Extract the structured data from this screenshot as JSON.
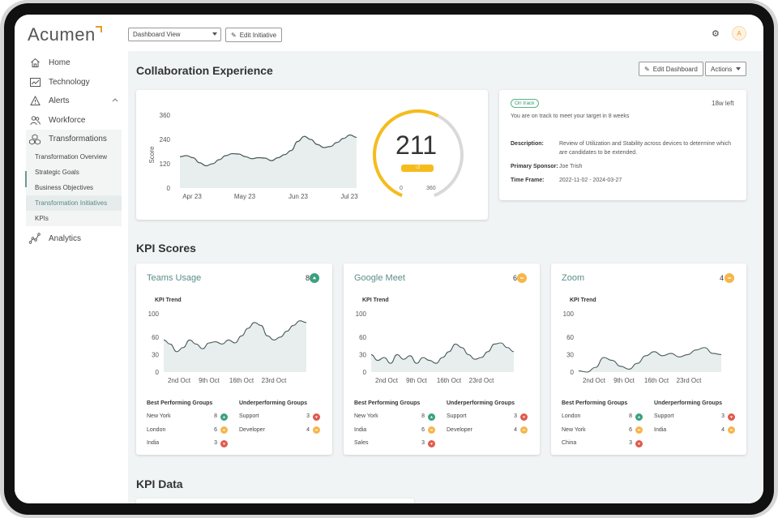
{
  "app": {
    "logo": "Acumen"
  },
  "sidebar": {
    "items": [
      {
        "label": "Home",
        "icon": "home-icon"
      },
      {
        "label": "Technology",
        "icon": "chart-icon"
      },
      {
        "label": "Alerts",
        "icon": "warning-icon"
      },
      {
        "label": "Workforce",
        "icon": "people-icon"
      },
      {
        "label": "Transformations",
        "icon": "cubes-icon"
      },
      {
        "label": "Analytics",
        "icon": "analytics-icon"
      }
    ],
    "sub_items": [
      {
        "label": "Transformation Overview"
      },
      {
        "label": "Strategic Goals"
      },
      {
        "label": "Business Objectives"
      },
      {
        "label": "Transformation Initiatives"
      },
      {
        "label": "KPIs"
      }
    ]
  },
  "header": {
    "view_select": "Dashboard View",
    "edit_initiative": "Edit Initiative",
    "avatar": "A"
  },
  "page": {
    "title": "Collaboration Experience",
    "edit_dashboard": "Edit Dashboard",
    "actions": "Actions",
    "kpi_scores_title": "KPI Scores",
    "kpi_data_title": "KPI Data"
  },
  "score_chart": {
    "ylabel": "Score",
    "yticks": [
      "360",
      "240",
      "120",
      "0"
    ],
    "xticks": [
      "Apr 23",
      "May 23",
      "Jun 23",
      "Jul 23"
    ],
    "ylim": [
      0,
      360
    ],
    "values": [
      155,
      160,
      150,
      125,
      110,
      120,
      140,
      160,
      170,
      168,
      155,
      145,
      150,
      148,
      135,
      150,
      165,
      185,
      230,
      255,
      240,
      215,
      200,
      205,
      225,
      245,
      262,
      250
    ]
  },
  "gauge": {
    "value": "211",
    "delta": "↑2",
    "min": "0",
    "max": "360",
    "fraction": 0.586,
    "color": "#f5bc1c"
  },
  "info": {
    "status": "On track",
    "time_left": "18w left",
    "message": "You are on track to meet your target in 8 weeks",
    "description_label": "Description:",
    "description": "Review of Utilization and Stability across devices to determine which are candidates to be extended.",
    "sponsor_label": "Primary Sponsor:",
    "sponsor": "Joe Trish",
    "timeframe_label": "Time Frame:",
    "timeframe": "2022-11-02 - 2024-03-27"
  },
  "kpis": [
    {
      "title": "Teams Usage",
      "score": "8",
      "score_status": "up",
      "trend_label": "KPI Trend",
      "yticks": [
        "100",
        "60",
        "30",
        "0"
      ],
      "xticks": [
        "2nd Oct",
        "9th Oct",
        "16th Oct",
        "23rd Oct"
      ],
      "values": [
        55,
        48,
        35,
        42,
        55,
        48,
        40,
        50,
        52,
        48,
        55,
        50,
        62,
        75,
        85,
        80,
        62,
        55,
        60,
        70,
        80,
        88,
        85
      ],
      "best_title": "Best Performing Groups",
      "under_title": "Underperforming Groups",
      "best": [
        {
          "name": "New York",
          "value": "8",
          "status": "up"
        },
        {
          "name": "London",
          "value": "6",
          "status": "neutral"
        },
        {
          "name": "India",
          "value": "3",
          "status": "down"
        }
      ],
      "under": [
        {
          "name": "Support",
          "value": "3",
          "status": "down"
        },
        {
          "name": "Developer",
          "value": "4",
          "status": "neutral"
        }
      ]
    },
    {
      "title": "Google Meet",
      "score": "6",
      "score_status": "neutral",
      "trend_label": "KPI Trend",
      "yticks": [
        "100",
        "60",
        "30",
        "0"
      ],
      "xticks": [
        "2nd Oct",
        "9th Oct",
        "16th Oct",
        "23rd Oct"
      ],
      "values": [
        30,
        20,
        25,
        15,
        30,
        22,
        28,
        15,
        25,
        20,
        15,
        25,
        35,
        48,
        42,
        30,
        22,
        25,
        35,
        48,
        50,
        42,
        35
      ],
      "best_title": "Best Performing Groups",
      "under_title": "Underperforming Groups",
      "best": [
        {
          "name": "New York",
          "value": "8",
          "status": "up"
        },
        {
          "name": "India",
          "value": "6",
          "status": "neutral"
        },
        {
          "name": "Sales",
          "value": "3",
          "status": "down"
        }
      ],
      "under": [
        {
          "name": "Support",
          "value": "3",
          "status": "down"
        },
        {
          "name": "Developer",
          "value": "4",
          "status": "neutral"
        }
      ]
    },
    {
      "title": "Zoom",
      "score": "4",
      "score_status": "neutral",
      "trend_label": "KPI Trend",
      "yticks": [
        "100",
        "60",
        "30",
        "0"
      ],
      "xticks": [
        "2nd Oct",
        "9th Oct",
        "16th Oct",
        "23rd Oct"
      ],
      "values": [
        2,
        0,
        8,
        25,
        20,
        10,
        5,
        15,
        28,
        35,
        28,
        32,
        26,
        30,
        38,
        42,
        32,
        30
      ],
      "best_title": "Best Performing Groups",
      "under_title": "Underperforming Groups",
      "best": [
        {
          "name": "London",
          "value": "8",
          "status": "up"
        },
        {
          "name": "New York",
          "value": "6",
          "status": "neutral"
        },
        {
          "name": "China",
          "value": "3",
          "status": "down"
        }
      ],
      "under": [
        {
          "name": "Support",
          "value": "3",
          "status": "down"
        },
        {
          "name": "India",
          "value": "4",
          "status": "neutral"
        }
      ]
    }
  ],
  "colors": {
    "up": "#3aa17e",
    "neutral": "#f5b64a",
    "down": "#e05a4e",
    "accent": "#5b8e89",
    "line": "#4a5b5a",
    "fill": "#e8eeee"
  }
}
